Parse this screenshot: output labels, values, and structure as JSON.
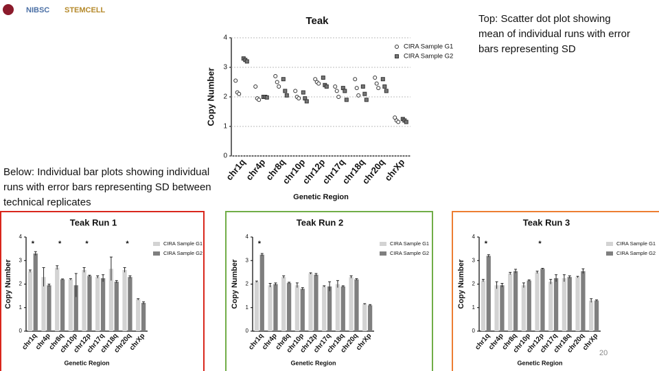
{
  "slide": {
    "logos": [
      "NIBSC",
      "STEMCELL"
    ],
    "top_caption": "Top: Scatter dot plot showing mean of individual runs with error bars representing SD",
    "bottom_caption": "Below: Individual bar plots showing individual runs with error bars representing SD between technical replicates",
    "page_number": "20"
  },
  "chart_data": [
    {
      "type": "scatter",
      "title": "Teak",
      "xlabel": "Genetic Region",
      "ylabel": "Copy Number",
      "categories": [
        "chr1q",
        "chr4p",
        "chr8q",
        "chr10p",
        "chr12p",
        "chr17q",
        "chr18q",
        "chr20q",
        "chrXp"
      ],
      "ylim": [
        0,
        4
      ],
      "yticks": [
        0,
        1,
        2,
        3,
        4
      ],
      "grid": true,
      "series": [
        {
          "name": "CIRA Sample G1",
          "color": "#ffffff",
          "values": [
            [
              2.55,
              2.15,
              2.1
            ],
            [
              2.35,
              1.95,
              1.9
            ],
            [
              2.7,
              2.5,
              2.35
            ],
            [
              2.2,
              2.0,
              1.95
            ],
            [
              2.6,
              2.5,
              2.45
            ],
            [
              2.35,
              2.2,
              2.0
            ],
            [
              2.6,
              2.3,
              2.05
            ],
            [
              2.65,
              2.45,
              2.3
            ],
            [
              1.3,
              1.2,
              1.15
            ]
          ]
        },
        {
          "name": "CIRA Sample G2",
          "color": "#777777",
          "values": [
            [
              3.3,
              3.25,
              3.2
            ],
            [
              2.0,
              2.0,
              1.98
            ],
            [
              2.6,
              2.2,
              2.05
            ],
            [
              2.15,
              1.95,
              1.85
            ],
            [
              2.65,
              2.4,
              2.35
            ],
            [
              2.3,
              2.2,
              1.9
            ],
            [
              2.35,
              2.1,
              1.9
            ],
            [
              2.6,
              2.35,
              2.2
            ],
            [
              1.25,
              1.2,
              1.15
            ]
          ]
        }
      ]
    },
    {
      "type": "bar",
      "title": "Teak Run 1",
      "xlabel": "Genetic Region",
      "ylabel": "Copy Number",
      "categories": [
        "chr1q",
        "chr4p",
        "chr8q",
        "chr10p",
        "chr12p",
        "chr17q",
        "chr18q",
        "chr20q",
        "chrXp"
      ],
      "ylim": [
        0,
        4
      ],
      "yticks": [
        0,
        1,
        2,
        3,
        4
      ],
      "grid": false,
      "series": [
        {
          "name": "CIRA Sample G1",
          "color": "#d3d3d3",
          "values": [
            2.55,
            2.3,
            2.7,
            2.2,
            2.6,
            2.3,
            2.65,
            2.6,
            1.35
          ],
          "errors": [
            0.05,
            0.4,
            0.08,
            0.03,
            0.1,
            0.05,
            0.5,
            0.1,
            0.03
          ]
        },
        {
          "name": "CIRA Sample G2",
          "color": "#7f7f7f",
          "values": [
            3.3,
            1.95,
            2.2,
            1.95,
            2.35,
            2.25,
            2.1,
            2.3,
            1.2
          ],
          "errors": [
            0.08,
            0.05,
            0.02,
            0.5,
            0.03,
            0.15,
            0.05,
            0.05,
            0.05
          ]
        }
      ],
      "annotations": [
        {
          "text": "*",
          "category": "chr1q"
        },
        {
          "text": "*",
          "category": "chr8q"
        },
        {
          "text": "*",
          "category": "chr12p"
        },
        {
          "text": "*",
          "category": "chr20q"
        }
      ]
    },
    {
      "type": "bar",
      "title": "Teak Run 2",
      "xlabel": "Genetic Region",
      "ylabel": "Copy Number",
      "categories": [
        "chr1q",
        "chr4p",
        "chr8q",
        "chr10p",
        "chr12p",
        "chr17q",
        "chr18q",
        "chr20q",
        "chrXp"
      ],
      "ylim": [
        0,
        4
      ],
      "yticks": [
        0,
        1,
        2,
        3,
        4
      ],
      "grid": false,
      "series": [
        {
          "name": "CIRA Sample G1",
          "color": "#d3d3d3",
          "values": [
            2.1,
            1.95,
            2.3,
            1.95,
            2.45,
            1.9,
            2.0,
            2.3,
            1.15
          ],
          "errors": [
            0.03,
            0.08,
            0.05,
            0.1,
            0.03,
            0.03,
            0.15,
            0.05,
            0.02
          ]
        },
        {
          "name": "CIRA Sample G2",
          "color": "#7f7f7f",
          "values": [
            3.25,
            2.0,
            2.05,
            1.8,
            2.4,
            1.9,
            1.9,
            2.2,
            1.1
          ],
          "errors": [
            0.05,
            0.05,
            0.03,
            0.05,
            0.05,
            0.2,
            0.03,
            0.03,
            0.03
          ]
        }
      ],
      "annotations": [
        {
          "text": "*",
          "category": "chr1q"
        }
      ]
    },
    {
      "type": "bar",
      "title": "Teak Run 3",
      "xlabel": "Genetic Region",
      "ylabel": "Copy Number",
      "categories": [
        "chr1q",
        "chr4p",
        "chr8q",
        "chr10p",
        "chr12p",
        "chr17q",
        "chr18q",
        "chr20q",
        "chrXp"
      ],
      "ylim": [
        0,
        4
      ],
      "yticks": [
        0,
        1,
        2,
        3,
        4
      ],
      "grid": false,
      "series": [
        {
          "name": "CIRA Sample G1",
          "color": "#d3d3d3",
          "values": [
            2.15,
            1.95,
            2.45,
            1.95,
            2.5,
            2.1,
            2.25,
            2.3,
            1.3
          ],
          "errors": [
            0.05,
            0.15,
            0.05,
            0.1,
            0.05,
            0.1,
            0.15,
            0.03,
            0.08
          ]
        },
        {
          "name": "CIRA Sample G2",
          "color": "#7f7f7f",
          "values": [
            3.2,
            1.95,
            2.55,
            2.15,
            2.65,
            2.25,
            2.3,
            2.55,
            1.3
          ],
          "errors": [
            0.05,
            0.08,
            0.08,
            0.03,
            0.02,
            0.15,
            0.05,
            0.1,
            0.03
          ]
        }
      ],
      "annotations": [
        {
          "text": "*",
          "category": "chr1q"
        },
        {
          "text": "*",
          "category": "chr12p"
        }
      ]
    }
  ]
}
